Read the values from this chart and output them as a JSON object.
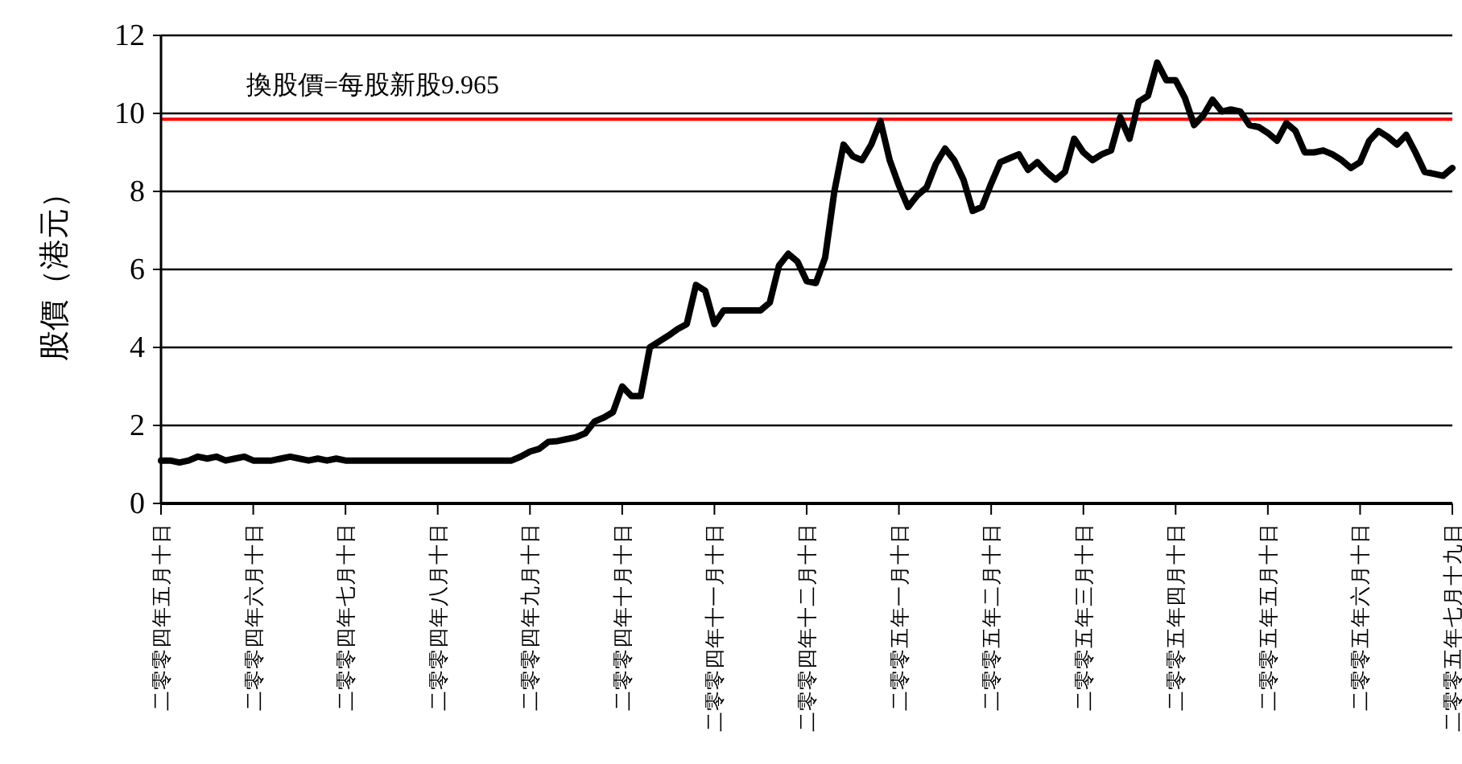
{
  "chart_data": {
    "type": "line",
    "ylabel": "股價（港元）",
    "categories": [
      "二零零四年五月十日",
      null,
      null,
      null,
      null,
      null,
      null,
      null,
      null,
      null,
      "二零零四年六月十日",
      null,
      null,
      null,
      null,
      null,
      null,
      null,
      null,
      null,
      "二零零四年七月十日",
      null,
      null,
      null,
      null,
      null,
      null,
      null,
      null,
      null,
      "二零零四年八月十日",
      null,
      null,
      null,
      null,
      null,
      null,
      null,
      null,
      null,
      "二零零四年九月十日",
      null,
      null,
      null,
      null,
      null,
      null,
      null,
      null,
      null,
      "二零零四年十月十日",
      null,
      null,
      null,
      null,
      null,
      null,
      null,
      null,
      null,
      "二零零四年十一月十日",
      null,
      null,
      null,
      null,
      null,
      null,
      null,
      null,
      null,
      "二零零四年十二月十日",
      null,
      null,
      null,
      null,
      null,
      null,
      null,
      null,
      null,
      "二零零五年一月十日",
      null,
      null,
      null,
      null,
      null,
      null,
      null,
      null,
      null,
      "二零零五年二月十日",
      null,
      null,
      null,
      null,
      null,
      null,
      null,
      null,
      null,
      "二零零五年三月十日",
      null,
      null,
      null,
      null,
      null,
      null,
      null,
      null,
      null,
      "二零零五年四月十日",
      null,
      null,
      null,
      null,
      null,
      null,
      null,
      null,
      null,
      "二零零五年五月十日",
      null,
      null,
      null,
      null,
      null,
      null,
      null,
      null,
      null,
      "二零零五年六月十日",
      null,
      null,
      null,
      null,
      null,
      null,
      null,
      null,
      null,
      "二零零五年七月十九日"
    ],
    "series": [
      {
        "color": "#000000",
        "values": [
          1.1,
          1.1,
          1.05,
          1.1,
          1.2,
          1.15,
          1.2,
          1.1,
          1.15,
          1.2,
          1.1,
          1.1,
          1.1,
          1.15,
          1.2,
          1.15,
          1.1,
          1.15,
          1.1,
          1.15,
          1.1,
          1.1,
          1.1,
          1.1,
          1.1,
          1.1,
          1.1,
          1.1,
          1.1,
          1.1,
          1.1,
          1.1,
          1.1,
          1.1,
          1.1,
          1.1,
          1.1,
          1.1,
          1.1,
          1.2,
          1.33,
          1.4,
          1.58,
          1.6,
          1.65,
          1.7,
          1.8,
          2.1,
          2.2,
          2.34,
          3.0,
          2.75,
          2.75,
          4.0,
          4.15,
          4.3,
          4.47,
          4.6,
          5.6,
          5.45,
          4.6,
          4.95,
          4.95,
          4.95,
          4.95,
          4.95,
          5.15,
          6.1,
          6.4,
          6.2,
          5.7,
          5.65,
          6.3,
          8.0,
          9.2,
          8.9,
          8.8,
          9.2,
          9.8,
          8.8,
          8.15,
          7.6,
          7.9,
          8.1,
          8.7,
          9.1,
          8.8,
          8.3,
          7.5,
          7.6,
          8.2,
          8.75,
          8.85,
          8.95,
          8.55,
          8.75,
          8.5,
          8.3,
          8.5,
          9.35,
          9.0,
          8.8,
          8.95,
          9.05,
          9.9,
          9.35,
          10.3,
          10.45,
          11.3,
          10.85,
          10.85,
          10.4,
          9.7,
          9.95,
          10.35,
          10.05,
          10.1,
          10.05,
          9.7,
          9.65,
          9.5,
          9.3,
          9.75,
          9.55,
          9.0,
          9.0,
          9.05,
          8.95,
          8.8,
          8.6,
          8.75,
          9.3,
          9.55,
          9.4,
          9.2,
          9.45,
          9.0,
          8.5,
          8.45,
          8.4,
          8.6
        ]
      }
    ],
    "ylim": [
      0,
      12
    ],
    "yticks": [
      0,
      2,
      4,
      6,
      8,
      10,
      12
    ],
    "grid": "y",
    "ref_lines": [
      {
        "axis": "y",
        "value": 9.85,
        "label": "換股價=每股新股9.965",
        "color": "#ff0000",
        "line_style": "solid"
      }
    ]
  }
}
